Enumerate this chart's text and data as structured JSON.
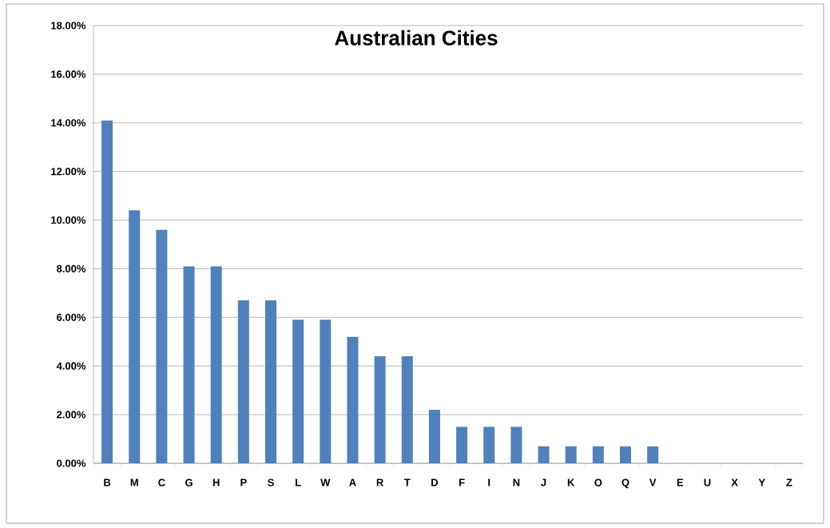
{
  "chart_data": {
    "type": "bar",
    "title": "Australian Cities",
    "categories": [
      "B",
      "M",
      "C",
      "G",
      "H",
      "P",
      "S",
      "L",
      "W",
      "A",
      "R",
      "T",
      "D",
      "F",
      "I",
      "N",
      "J",
      "K",
      "O",
      "Q",
      "V",
      "E",
      "U",
      "X",
      "Y",
      "Z"
    ],
    "values": [
      14.1,
      10.4,
      9.6,
      8.1,
      8.1,
      6.7,
      6.7,
      5.9,
      5.9,
      5.2,
      4.4,
      4.4,
      2.2,
      1.5,
      1.5,
      1.5,
      0.7,
      0.7,
      0.7,
      0.7,
      0.7,
      0,
      0,
      0,
      0,
      0
    ],
    "color": "#4f81bd",
    "ylim": [
      0,
      18
    ],
    "yticks": [
      {
        "value": 0,
        "label": "0.00%"
      },
      {
        "value": 2,
        "label": "2.00%"
      },
      {
        "value": 4,
        "label": "4.00%"
      },
      {
        "value": 6,
        "label": "6.00%"
      },
      {
        "value": 8,
        "label": "8.00%"
      },
      {
        "value": 10,
        "label": "10.00%"
      },
      {
        "value": 12,
        "label": "12.00%"
      },
      {
        "value": 14,
        "label": "14.00%"
      },
      {
        "value": 16,
        "label": "16.00%"
      },
      {
        "value": 18,
        "label": "18.00%"
      }
    ],
    "grid": "y"
  }
}
